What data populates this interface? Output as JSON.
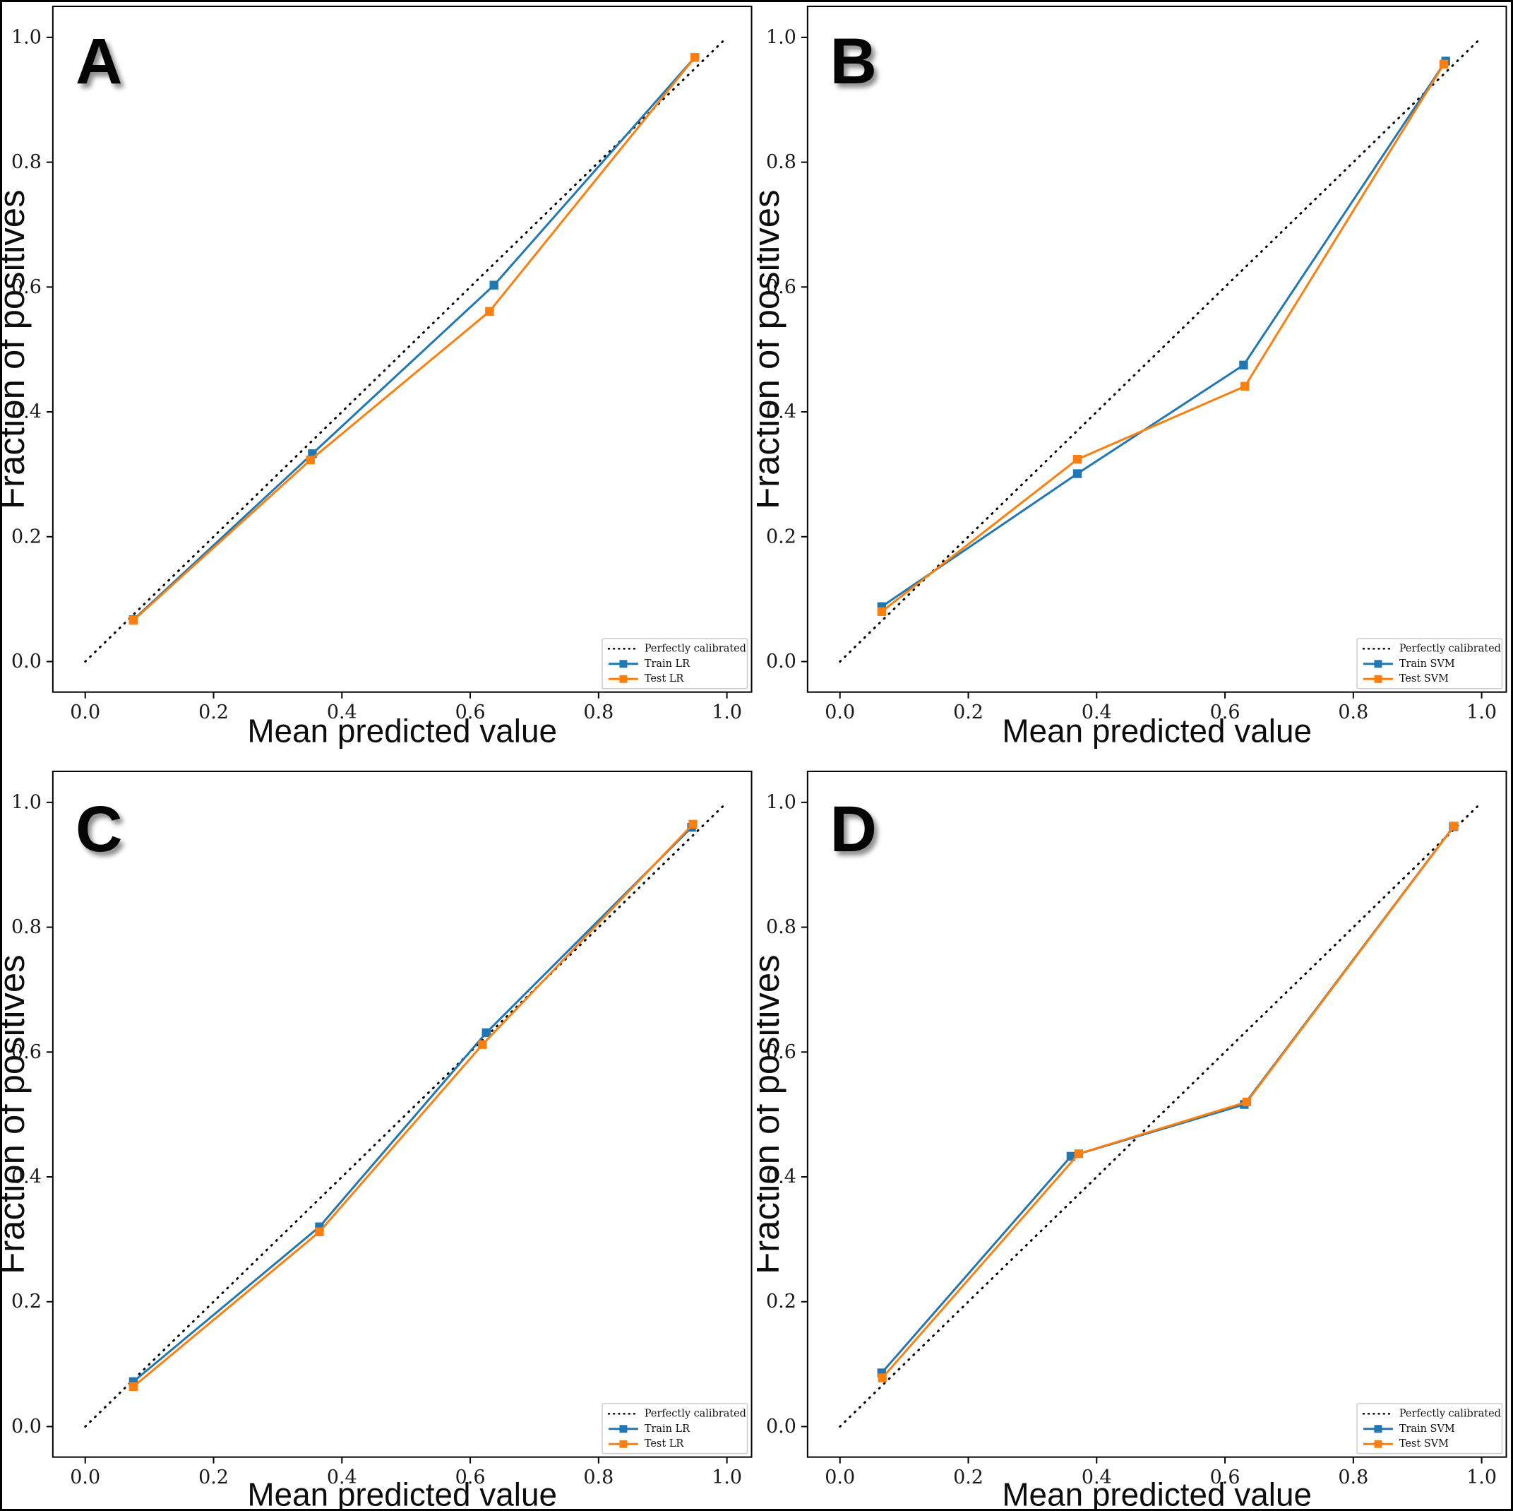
{
  "figure": {
    "background": "#ffffff",
    "frame_color": "#000000"
  },
  "colors": {
    "train": "#1f77b4",
    "test": "#ff7f0e",
    "calibrated": "#000000",
    "legend_border": "#cccccc",
    "legend_background": "#ffffff"
  },
  "chart_data": [
    {
      "type": "line",
      "panel_label": "A",
      "xlabel": "Mean predicted value",
      "ylabel": "Fraction of positives",
      "xlim": [
        -0.05,
        1.05
      ],
      "ylim": [
        -0.05,
        1.05
      ],
      "xticks": [
        "0.0",
        "0.2",
        "0.4",
        "0.6",
        "0.8",
        "1.0"
      ],
      "yticks": [
        "0.0",
        "0.2",
        "0.4",
        "0.6",
        "0.8",
        "1.0"
      ],
      "grid": false,
      "legend_position": "lower right",
      "series": [
        {
          "name": "Perfectly calibrated",
          "style": "dotted",
          "color": "#000000",
          "points": [
            [
              0.0,
              0.0
            ],
            [
              1.0,
              1.0
            ]
          ]
        },
        {
          "name": "Train LR",
          "style": "solid-square",
          "color": "#1f77b4",
          "points": [
            [
              0.075,
              0.067
            ],
            [
              0.354,
              0.333
            ],
            [
              0.637,
              0.603
            ],
            [
              0.95,
              0.968
            ]
          ]
        },
        {
          "name": "Test LR",
          "style": "solid-square",
          "color": "#ff7f0e",
          "points": [
            [
              0.075,
              0.066
            ],
            [
              0.351,
              0.323
            ],
            [
              0.63,
              0.561
            ],
            [
              0.95,
              0.968
            ]
          ]
        }
      ]
    },
    {
      "type": "line",
      "panel_label": "B",
      "xlabel": "Mean predicted value",
      "ylabel": "Fraction of positives",
      "xlim": [
        -0.05,
        1.05
      ],
      "ylim": [
        -0.05,
        1.05
      ],
      "xticks": [
        "0.0",
        "0.2",
        "0.4",
        "0.6",
        "0.8",
        "1.0"
      ],
      "yticks": [
        "0.0",
        "0.2",
        "0.4",
        "0.6",
        "0.8",
        "1.0"
      ],
      "grid": false,
      "legend_position": "lower right",
      "series": [
        {
          "name": "Perfectly calibrated",
          "style": "dotted",
          "color": "#000000",
          "points": [
            [
              0.0,
              0.0
            ],
            [
              1.0,
              1.0
            ]
          ]
        },
        {
          "name": "Train SVM",
          "style": "solid-square",
          "color": "#1f77b4",
          "points": [
            [
              0.065,
              0.088
            ],
            [
              0.37,
              0.301
            ],
            [
              0.629,
              0.475
            ],
            [
              0.944,
              0.962
            ]
          ]
        },
        {
          "name": "Test SVM",
          "style": "solid-square",
          "color": "#ff7f0e",
          "points": [
            [
              0.065,
              0.08
            ],
            [
              0.37,
              0.324
            ],
            [
              0.631,
              0.441
            ],
            [
              0.941,
              0.957
            ]
          ]
        }
      ]
    },
    {
      "type": "line",
      "panel_label": "C",
      "xlabel": "Mean predicted value",
      "ylabel": "Fraction of positives",
      "xlim": [
        -0.05,
        1.05
      ],
      "ylim": [
        -0.05,
        1.05
      ],
      "xticks": [
        "0.0",
        "0.2",
        "0.4",
        "0.6",
        "0.8",
        "1.0"
      ],
      "yticks": [
        "0.0",
        "0.2",
        "0.4",
        "0.6",
        "0.8",
        "1.0"
      ],
      "grid": false,
      "legend_position": "lower right",
      "series": [
        {
          "name": "Perfectly calibrated",
          "style": "dotted",
          "color": "#000000",
          "points": [
            [
              0.0,
              0.0
            ],
            [
              1.0,
              1.0
            ]
          ]
        },
        {
          "name": "Train LR",
          "style": "solid-square",
          "color": "#1f77b4",
          "points": [
            [
              0.075,
              0.072
            ],
            [
              0.365,
              0.32
            ],
            [
              0.625,
              0.631
            ],
            [
              0.945,
              0.96
            ]
          ]
        },
        {
          "name": "Test LR",
          "style": "solid-square",
          "color": "#ff7f0e",
          "points": [
            [
              0.075,
              0.064
            ],
            [
              0.365,
              0.312
            ],
            [
              0.619,
              0.612
            ],
            [
              0.947,
              0.965
            ]
          ]
        }
      ]
    },
    {
      "type": "line",
      "panel_label": "D",
      "xlabel": "Mean predicted value",
      "ylabel": "Fraction of positives",
      "xlim": [
        -0.05,
        1.05
      ],
      "ylim": [
        -0.05,
        1.05
      ],
      "xticks": [
        "0.0",
        "0.2",
        "0.4",
        "0.6",
        "0.8",
        "1.0"
      ],
      "yticks": [
        "0.0",
        "0.2",
        "0.4",
        "0.6",
        "0.8",
        "1.0"
      ],
      "grid": false,
      "legend_position": "lower right",
      "series": [
        {
          "name": "Perfectly calibrated",
          "style": "dotted",
          "color": "#000000",
          "points": [
            [
              0.0,
              0.0
            ],
            [
              1.0,
              1.0
            ]
          ]
        },
        {
          "name": "Train SVM",
          "style": "solid-square",
          "color": "#1f77b4",
          "points": [
            [
              0.065,
              0.086
            ],
            [
              0.36,
              0.433
            ],
            [
              0.63,
              0.516
            ],
            [
              0.956,
              0.961
            ]
          ]
        },
        {
          "name": "Test SVM",
          "style": "solid-square",
          "color": "#ff7f0e",
          "points": [
            [
              0.066,
              0.078
            ],
            [
              0.372,
              0.437
            ],
            [
              0.634,
              0.52
            ],
            [
              0.957,
              0.962
            ]
          ]
        }
      ]
    }
  ]
}
